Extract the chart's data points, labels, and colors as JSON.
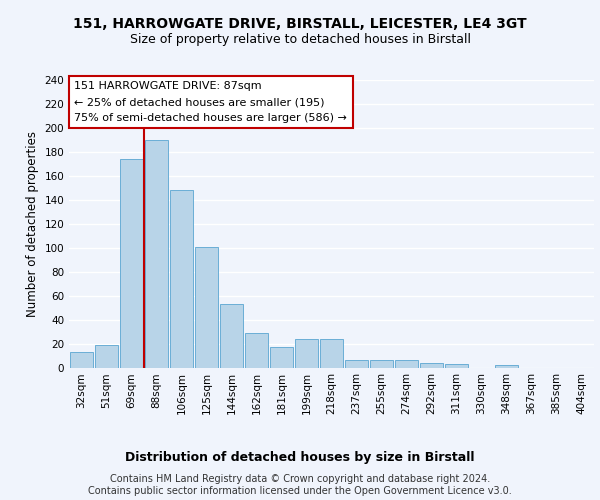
{
  "title1": "151, HARROWGATE DRIVE, BIRSTALL, LEICESTER, LE4 3GT",
  "title2": "Size of property relative to detached houses in Birstall",
  "xlabel": "Distribution of detached houses by size in Birstall",
  "ylabel": "Number of detached properties",
  "footer1": "Contains HM Land Registry data © Crown copyright and database right 2024.",
  "footer2": "Contains public sector information licensed under the Open Government Licence v3.0.",
  "categories": [
    "32sqm",
    "51sqm",
    "69sqm",
    "88sqm",
    "106sqm",
    "125sqm",
    "144sqm",
    "162sqm",
    "181sqm",
    "199sqm",
    "218sqm",
    "237sqm",
    "255sqm",
    "274sqm",
    "292sqm",
    "311sqm",
    "330sqm",
    "348sqm",
    "367sqm",
    "385sqm",
    "404sqm"
  ],
  "values": [
    13,
    19,
    174,
    190,
    148,
    101,
    53,
    29,
    17,
    24,
    24,
    6,
    6,
    6,
    4,
    3,
    0,
    2,
    0,
    0,
    0
  ],
  "bar_color": "#b8d4e8",
  "bar_edge_color": "#6aaed6",
  "vline_color": "#c00000",
  "vline_x": 2.5,
  "annotation_line1": "151 HARROWGATE DRIVE: 87sqm",
  "annotation_line2": "← 25% of detached houses are smaller (195)",
  "annotation_line3": "75% of semi-detached houses are larger (586) →",
  "annotation_box_facecolor": "#ffffff",
  "annotation_box_edgecolor": "#c00000",
  "ylim": [
    0,
    240
  ],
  "yticks": [
    0,
    20,
    40,
    60,
    80,
    100,
    120,
    140,
    160,
    180,
    200,
    220,
    240
  ],
  "fig_facecolor": "#f0f4fc",
  "plot_facecolor": "#f0f4fc",
  "grid_color": "#ffffff",
  "title1_fontsize": 10,
  "title2_fontsize": 9,
  "xlabel_fontsize": 9,
  "ylabel_fontsize": 8.5,
  "tick_fontsize": 7.5,
  "annotation_fontsize": 8,
  "footer_fontsize": 7
}
